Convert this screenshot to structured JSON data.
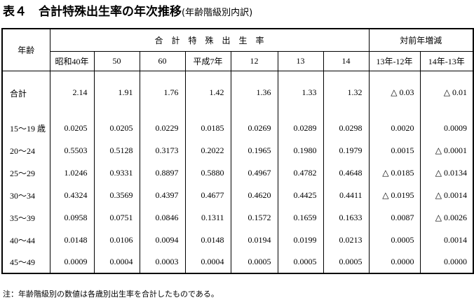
{
  "header": {
    "title": "表４　合計特殊出生率の年次推移",
    "subtitle": "(年齢階級別内訳)"
  },
  "table": {
    "corner": "年齢",
    "group_main": "合　計　特　殊　出　生　率",
    "group_diff": "対前年増減",
    "columns": [
      "昭和40年",
      "50",
      "60",
      "平成7年",
      "12",
      "13",
      "14",
      "13年-12年",
      "14年-13年"
    ],
    "rows": [
      [
        "合計",
        "2.14",
        "1.91",
        "1.76",
        "1.42",
        "1.36",
        "1.33",
        "1.32",
        "△ 0.03",
        "△ 0.01"
      ],
      [
        "15～19 歳",
        "0.0205",
        "0.0205",
        "0.0229",
        "0.0185",
        "0.0269",
        "0.0289",
        "0.0298",
        "0.0020",
        "0.0009"
      ],
      [
        "20～24",
        "0.5503",
        "0.5128",
        "0.3173",
        "0.2022",
        "0.1965",
        "0.1980",
        "0.1979",
        "0.0015",
        "△ 0.0001"
      ],
      [
        "25～29",
        "1.0246",
        "0.9331",
        "0.8897",
        "0.5880",
        "0.4967",
        "0.4782",
        "0.4648",
        "△ 0.0185",
        "△ 0.0134"
      ],
      [
        "30～34",
        "0.4324",
        "0.3569",
        "0.4397",
        "0.4677",
        "0.4620",
        "0.4425",
        "0.4411",
        "△ 0.0195",
        "△ 0.0014"
      ],
      [
        "35～39",
        "0.0958",
        "0.0751",
        "0.0846",
        "0.1311",
        "0.1572",
        "0.1659",
        "0.1633",
        "0.0087",
        "△ 0.0026"
      ],
      [
        "40～44",
        "0.0148",
        "0.0106",
        "0.0094",
        "0.0148",
        "0.0194",
        "0.0199",
        "0.0213",
        "0.0005",
        "0.0014"
      ],
      [
        "45～49",
        "0.0009",
        "0.0004",
        "0.0003",
        "0.0004",
        "0.0005",
        "0.0005",
        "0.0005",
        "0.0000",
        "0.0000"
      ]
    ]
  },
  "footer": {
    "note": "注：年齢階級別の数値は各歳別出生率を合計したものである。"
  }
}
